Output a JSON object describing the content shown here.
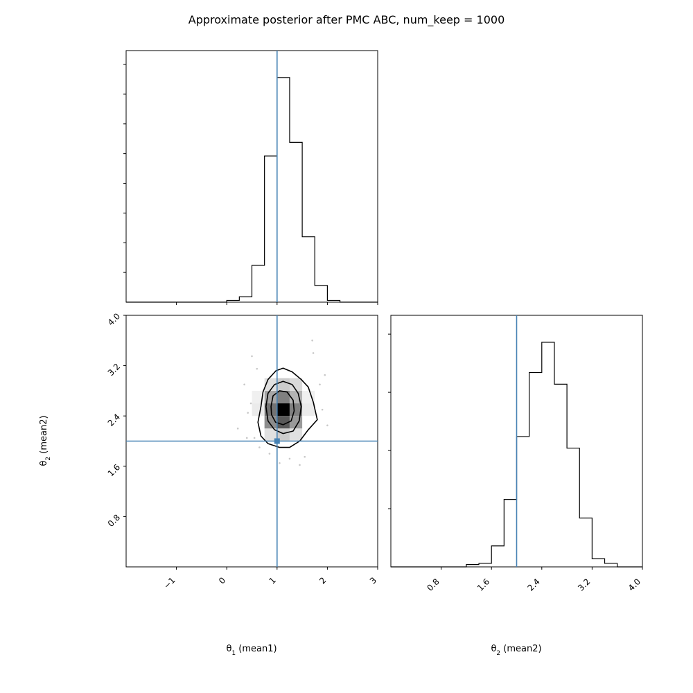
{
  "title": "Approximate posterior after PMC ABC, num_keep = 1000",
  "colors": {
    "truth": "#4682b4",
    "hist": "#000000",
    "frame": "#000000"
  },
  "chart_data": [
    {
      "type": "histogram",
      "panel": "theta1-marginal",
      "xlim": [
        -2,
        3
      ],
      "bins": [
        {
          "x0": 0.0,
          "x1": 0.25,
          "count": 3
        },
        {
          "x0": 0.25,
          "x1": 0.5,
          "count": 9
        },
        {
          "x0": 0.5,
          "x1": 0.75,
          "count": 62
        },
        {
          "x0": 0.75,
          "x1": 1.0,
          "count": 246
        },
        {
          "x0": 1.0,
          "x1": 1.25,
          "count": 378
        },
        {
          "x0": 1.25,
          "x1": 1.5,
          "count": 269
        },
        {
          "x0": 1.5,
          "x1": 1.75,
          "count": 110
        },
        {
          "x0": 1.75,
          "x1": 2.0,
          "count": 28
        },
        {
          "x0": 2.0,
          "x1": 2.25,
          "count": 3
        }
      ],
      "truth": 1.0
    },
    {
      "type": "histogram",
      "panel": "theta2-marginal",
      "xlim": [
        0,
        4
      ],
      "xticks": [
        "0.8",
        "1.6",
        "2.4",
        "3.2",
        "4.0"
      ],
      "xtick_values": [
        0.8,
        1.6,
        2.4,
        3.2,
        4.0
      ],
      "xlabel_symbol": "θ",
      "xlabel_sub": "2",
      "xlabel_rest": " (mean2)",
      "bins": [
        {
          "x0": 1.2,
          "x1": 1.4,
          "count": 2
        },
        {
          "x0": 1.4,
          "x1": 1.6,
          "count": 3
        },
        {
          "x0": 1.6,
          "x1": 1.8,
          "count": 18
        },
        {
          "x0": 1.8,
          "x1": 2.0,
          "count": 58
        },
        {
          "x0": 2.0,
          "x1": 2.2,
          "count": 112
        },
        {
          "x0": 2.2,
          "x1": 2.4,
          "count": 167
        },
        {
          "x0": 2.4,
          "x1": 2.6,
          "count": 193
        },
        {
          "x0": 2.6,
          "x1": 2.8,
          "count": 157
        },
        {
          "x0": 2.8,
          "x1": 3.0,
          "count": 102
        },
        {
          "x0": 3.0,
          "x1": 3.2,
          "count": 42
        },
        {
          "x0": 3.2,
          "x1": 3.4,
          "count": 7
        },
        {
          "x0": 3.4,
          "x1": 3.6,
          "count": 3
        }
      ],
      "truth": 2.0
    },
    {
      "type": "heatmap",
      "panel": "joint",
      "xlim": [
        -2,
        3
      ],
      "ylim": [
        0,
        4
      ],
      "xticks": [
        "−1",
        "0",
        "1",
        "2",
        "3"
      ],
      "xtick_values": [
        -1,
        0,
        1,
        2,
        3
      ],
      "yticks": [
        "0.8",
        "1.6",
        "2.4",
        "3.2",
        "4.0"
      ],
      "ytick_values": [
        0.8,
        1.6,
        2.4,
        3.2,
        4.0
      ],
      "xlabel_symbol": "θ",
      "xlabel_sub": "1",
      "xlabel_rest": " (mean1)",
      "ylabel_symbol": "θ",
      "ylabel_sub": "2",
      "ylabel_rest": " (mean2)",
      "cells": [
        {
          "x0": 0.75,
          "x1": 1.0,
          "y0": 2.6,
          "y1": 2.8,
          "v": 0.35
        },
        {
          "x0": 1.0,
          "x1": 1.25,
          "y0": 2.6,
          "y1": 2.8,
          "v": 0.5
        },
        {
          "x0": 1.25,
          "x1": 1.5,
          "y0": 2.6,
          "y1": 2.8,
          "v": 0.3
        },
        {
          "x0": 0.75,
          "x1": 1.0,
          "y0": 2.4,
          "y1": 2.6,
          "v": 0.55
        },
        {
          "x0": 1.0,
          "x1": 1.25,
          "y0": 2.4,
          "y1": 2.6,
          "v": 1.0
        },
        {
          "x0": 1.25,
          "x1": 1.5,
          "y0": 2.4,
          "y1": 2.6,
          "v": 0.5
        },
        {
          "x0": 0.75,
          "x1": 1.0,
          "y0": 2.2,
          "y1": 2.4,
          "v": 0.45
        },
        {
          "x0": 1.0,
          "x1": 1.25,
          "y0": 2.2,
          "y1": 2.4,
          "v": 0.65
        },
        {
          "x0": 1.25,
          "x1": 1.5,
          "y0": 2.2,
          "y1": 2.4,
          "v": 0.4
        },
        {
          "x0": 0.75,
          "x1": 1.0,
          "y0": 2.8,
          "y1": 3.0,
          "v": 0.12
        },
        {
          "x0": 1.0,
          "x1": 1.25,
          "y0": 2.8,
          "y1": 3.0,
          "v": 0.2
        },
        {
          "x0": 1.25,
          "x1": 1.5,
          "y0": 2.8,
          "y1": 3.0,
          "v": 0.15
        },
        {
          "x0": 0.75,
          "x1": 1.0,
          "y0": 2.0,
          "y1": 2.2,
          "v": 0.12
        },
        {
          "x0": 1.0,
          "x1": 1.25,
          "y0": 2.0,
          "y1": 2.2,
          "v": 0.2
        },
        {
          "x0": 1.25,
          "x1": 1.5,
          "y0": 2.0,
          "y1": 2.2,
          "v": 0.12
        },
        {
          "x0": 0.5,
          "x1": 0.75,
          "y0": 2.4,
          "y1": 2.6,
          "v": 0.08
        },
        {
          "x0": 1.5,
          "x1": 1.75,
          "y0": 2.4,
          "y1": 2.6,
          "v": 0.08
        },
        {
          "x0": 1.5,
          "x1": 1.75,
          "y0": 2.6,
          "y1": 2.8,
          "v": 0.06
        },
        {
          "x0": 0.5,
          "x1": 0.75,
          "y0": 2.6,
          "y1": 2.8,
          "v": 0.06
        }
      ],
      "contours": [
        [
          [
            0.68,
            2.55
          ],
          [
            0.72,
            2.78
          ],
          [
            0.82,
            2.98
          ],
          [
            0.98,
            3.12
          ],
          [
            1.12,
            3.16
          ],
          [
            1.3,
            3.1
          ],
          [
            1.48,
            2.98
          ],
          [
            1.62,
            2.86
          ],
          [
            1.72,
            2.62
          ],
          [
            1.8,
            2.34
          ],
          [
            1.62,
            2.18
          ],
          [
            1.45,
            2.0
          ],
          [
            1.25,
            1.9
          ],
          [
            1.05,
            1.9
          ],
          [
            0.82,
            1.96
          ],
          [
            0.68,
            2.08
          ],
          [
            0.62,
            2.3
          ]
        ],
        [
          [
            0.78,
            2.55
          ],
          [
            0.82,
            2.76
          ],
          [
            0.95,
            2.9
          ],
          [
            1.12,
            2.95
          ],
          [
            1.3,
            2.9
          ],
          [
            1.42,
            2.76
          ],
          [
            1.48,
            2.55
          ],
          [
            1.44,
            2.32
          ],
          [
            1.32,
            2.16
          ],
          [
            1.12,
            2.12
          ],
          [
            0.95,
            2.18
          ],
          [
            0.82,
            2.32
          ]
        ],
        [
          [
            0.88,
            2.55
          ],
          [
            0.92,
            2.72
          ],
          [
            1.05,
            2.8
          ],
          [
            1.2,
            2.78
          ],
          [
            1.32,
            2.65
          ],
          [
            1.34,
            2.48
          ],
          [
            1.28,
            2.32
          ],
          [
            1.12,
            2.26
          ],
          [
            0.97,
            2.3
          ],
          [
            0.89,
            2.42
          ]
        ]
      ],
      "scatter": [
        [
          0.22,
          2.2
        ],
        [
          0.35,
          2.9
        ],
        [
          0.42,
          2.45
        ],
        [
          0.5,
          3.35
        ],
        [
          0.55,
          2.05
        ],
        [
          0.6,
          3.15
        ],
        [
          0.65,
          1.9
        ],
        [
          0.48,
          2.6
        ],
        [
          1.85,
          2.9
        ],
        [
          1.9,
          2.5
        ],
        [
          1.95,
          3.05
        ],
        [
          1.72,
          3.4
        ],
        [
          1.55,
          1.75
        ],
        [
          1.25,
          1.72
        ],
        [
          1.05,
          1.65
        ],
        [
          0.85,
          1.8
        ],
        [
          2.0,
          2.25
        ],
        [
          1.7,
          3.6
        ],
        [
          0.4,
          2.05
        ],
        [
          1.45,
          1.62
        ]
      ],
      "truth": [
        1.0,
        2.0
      ]
    }
  ]
}
